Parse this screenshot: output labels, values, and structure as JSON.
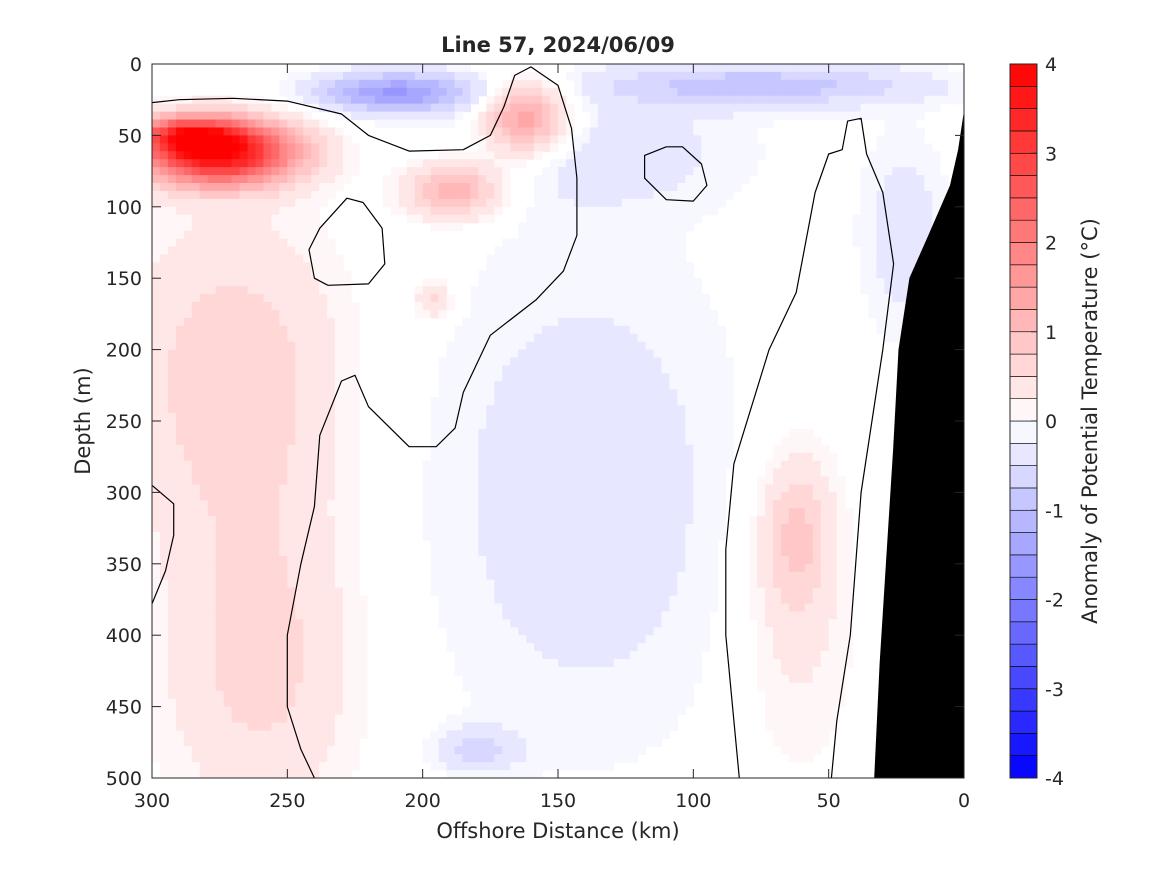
{
  "chart_data": {
    "type": "heatmap",
    "subtype": "filled contour section",
    "title": "Line 57, 2024/06/09",
    "xlabel": "Offshore Distance (km)",
    "ylabel": "Depth (m)",
    "colorbar_label": "Anomaly of Potential Temperature (°C)",
    "x_range": [
      300,
      0
    ],
    "x_reversed": true,
    "x_ticks": [
      300,
      250,
      200,
      150,
      100,
      50,
      0
    ],
    "y_range": [
      0,
      500
    ],
    "y_reversed": true,
    "y_ticks": [
      0,
      50,
      100,
      150,
      200,
      250,
      300,
      350,
      400,
      450,
      500
    ],
    "colorbar_range": [
      -4,
      4
    ],
    "colorbar_ticks": [
      -4,
      -3,
      -2,
      -1,
      0,
      1,
      2,
      3,
      4
    ],
    "contour_interval": 0.25,
    "zero_contour_drawn": true,
    "colormap": {
      "negative": "#0000ff",
      "zero": "#ffffff",
      "positive": "#ff0000"
    },
    "topography_color": "#000000",
    "bottom_profile": [
      [
        33,
        500
      ],
      [
        31,
        420
      ],
      [
        28,
        330
      ],
      [
        26,
        270
      ],
      [
        24,
        200
      ],
      [
        20,
        150
      ],
      [
        13,
        120
      ],
      [
        5,
        85
      ],
      [
        2,
        60
      ],
      [
        0,
        35
      ]
    ],
    "features": [
      {
        "kind": "warm",
        "center": [
          275,
          62
        ],
        "radius": [
          28,
          22
        ],
        "value": 3.9
      },
      {
        "kind": "warm",
        "center": [
          287,
          50
        ],
        "radius": [
          18,
          12
        ],
        "value": 2.0
      },
      {
        "kind": "warm",
        "center": [
          162,
          38
        ],
        "radius": [
          16,
          26
        ],
        "value": 1.6
      },
      {
        "kind": "warm",
        "center": [
          188,
          88
        ],
        "radius": [
          18,
          20
        ],
        "value": 1.25
      },
      {
        "kind": "warm",
        "center": [
          196,
          165
        ],
        "radius": [
          7,
          14
        ],
        "value": 0.6
      },
      {
        "kind": "warm",
        "center": [
          270,
          220
        ],
        "radius": [
          40,
          110
        ],
        "value": 0.7
      },
      {
        "kind": "warm",
        "center": [
          260,
          420
        ],
        "radius": [
          35,
          110
        ],
        "value": 0.6
      },
      {
        "kind": "warm",
        "center": [
          62,
          330
        ],
        "radius": [
          12,
          50
        ],
        "value": 0.65
      },
      {
        "kind": "warm",
        "center": [
          62,
          380
        ],
        "radius": [
          22,
          120
        ],
        "value": 0.35
      },
      {
        "kind": "cold",
        "center": [
          210,
          20
        ],
        "radius": [
          30,
          14
        ],
        "value": -1.5
      },
      {
        "kind": "cold",
        "center": [
          75,
          15
        ],
        "radius": [
          60,
          15
        ],
        "value": -0.9
      },
      {
        "kind": "cold",
        "center": [
          135,
          60
        ],
        "radius": [
          55,
          40
        ],
        "value": -0.35
      },
      {
        "kind": "cold",
        "center": [
          140,
          300
        ],
        "radius": [
          60,
          180
        ],
        "value": -0.4
      },
      {
        "kind": "cold",
        "center": [
          180,
          480
        ],
        "radius": [
          15,
          15
        ],
        "value": -0.55
      },
      {
        "kind": "cold",
        "center": [
          22,
          120
        ],
        "radius": [
          16,
          70
        ],
        "value": -0.4
      }
    ],
    "zero_contours": [
      [
        [
          300,
          27
        ],
        [
          290,
          25
        ],
        [
          270,
          24
        ],
        [
          250,
          26
        ],
        [
          230,
          35
        ],
        [
          220,
          50
        ],
        [
          205,
          61
        ],
        [
          185,
          60
        ],
        [
          175,
          50
        ],
        [
          170,
          30
        ],
        [
          166,
          8
        ],
        [
          160,
          2
        ],
        [
          150,
          15
        ],
        [
          145,
          45
        ],
        [
          143,
          80
        ],
        [
          143,
          120
        ],
        [
          148,
          145
        ],
        [
          158,
          165
        ],
        [
          175,
          190
        ],
        [
          185,
          230
        ],
        [
          188,
          255
        ],
        [
          195,
          268
        ],
        [
          205,
          268
        ],
        [
          220,
          240
        ],
        [
          225,
          218
        ],
        [
          230,
          222
        ],
        [
          238,
          260
        ],
        [
          240,
          310
        ],
        [
          245,
          350
        ],
        [
          250,
          400
        ],
        [
          250,
          450
        ],
        [
          245,
          480
        ],
        [
          240,
          500
        ]
      ],
      [
        [
          300,
          295
        ],
        [
          292,
          308
        ],
        [
          292,
          330
        ],
        [
          295,
          355
        ],
        [
          300,
          378
        ]
      ],
      [
        [
          235,
          155
        ],
        [
          240,
          150
        ],
        [
          242,
          130
        ],
        [
          238,
          115
        ],
        [
          228,
          94
        ],
        [
          222,
          97
        ],
        [
          215,
          115
        ],
        [
          214,
          140
        ],
        [
          220,
          154
        ],
        [
          235,
          155
        ]
      ],
      [
        [
          110,
          58
        ],
        [
          118,
          64
        ],
        [
          118,
          80
        ],
        [
          110,
          95
        ],
        [
          100,
          96
        ],
        [
          95,
          85
        ],
        [
          97,
          70
        ],
        [
          104,
          58
        ],
        [
          110,
          58
        ]
      ],
      [
        [
          83,
          500
        ],
        [
          85,
          460
        ],
        [
          88,
          400
        ],
        [
          88,
          340
        ],
        [
          85,
          280
        ],
        [
          72,
          200
        ],
        [
          62,
          160
        ],
        [
          55,
          90
        ],
        [
          50,
          63
        ],
        [
          45,
          60
        ],
        [
          43,
          40
        ],
        [
          38,
          38
        ],
        [
          36,
          63
        ],
        [
          30,
          90
        ],
        [
          26,
          140
        ],
        [
          30,
          200
        ],
        [
          38,
          300
        ],
        [
          42,
          400
        ],
        [
          47,
          460
        ],
        [
          49,
          500
        ]
      ]
    ]
  }
}
